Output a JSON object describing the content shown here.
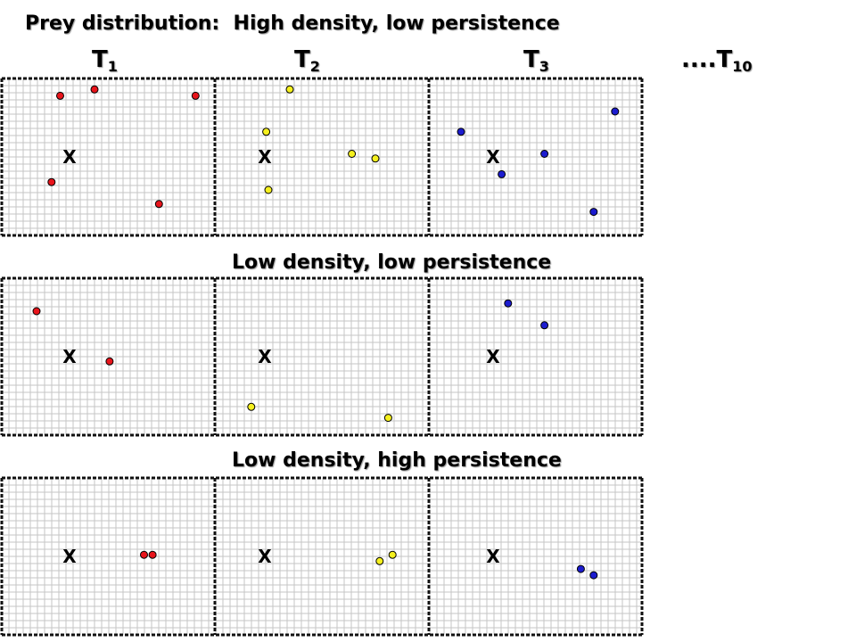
{
  "title": "Prey distribution:  High density, low persistence",
  "time_labels": [
    {
      "letter": "T",
      "sub": "1"
    },
    {
      "letter": "T",
      "sub": "2"
    },
    {
      "letter": "T",
      "sub": "3"
    },
    {
      "letter": "....T",
      "sub": "10"
    }
  ],
  "marker_glyph": "X",
  "dot_colors": [
    "#e8141b",
    "#f5f01e",
    "#1c1ccf"
  ],
  "rows": [
    {
      "caption": "",
      "panels": [
        {
          "prey": [
            [
              0.28,
              0.11
            ],
            [
              0.44,
              0.07
            ],
            [
              0.91,
              0.11
            ],
            [
              0.24,
              0.66
            ],
            [
              0.74,
              0.8
            ]
          ]
        },
        {
          "prey": [
            [
              0.35,
              0.07
            ],
            [
              0.24,
              0.34
            ],
            [
              0.64,
              0.48
            ],
            [
              0.75,
              0.51
            ],
            [
              0.25,
              0.71
            ]
          ]
        },
        {
          "prey": [
            [
              0.87,
              0.21
            ],
            [
              0.15,
              0.34
            ],
            [
              0.54,
              0.48
            ],
            [
              0.34,
              0.61
            ],
            [
              0.77,
              0.85
            ]
          ]
        }
      ]
    },
    {
      "caption": "Low density, low persistence",
      "panels": [
        {
          "prey": [
            [
              0.17,
              0.21
            ],
            [
              0.51,
              0.53
            ]
          ]
        },
        {
          "prey": [
            [
              0.17,
              0.82
            ],
            [
              0.81,
              0.89
            ]
          ]
        },
        {
          "prey": [
            [
              0.37,
              0.16
            ],
            [
              0.54,
              0.3
            ]
          ]
        }
      ]
    },
    {
      "caption": "Low density, high persistence",
      "panels": [
        {
          "prey": [
            [
              0.67,
              0.49
            ],
            [
              0.71,
              0.49
            ]
          ]
        },
        {
          "prey": [
            [
              0.77,
              0.53
            ],
            [
              0.83,
              0.49
            ]
          ]
        },
        {
          "prey": [
            [
              0.71,
              0.58
            ],
            [
              0.77,
              0.62
            ]
          ]
        }
      ]
    }
  ]
}
